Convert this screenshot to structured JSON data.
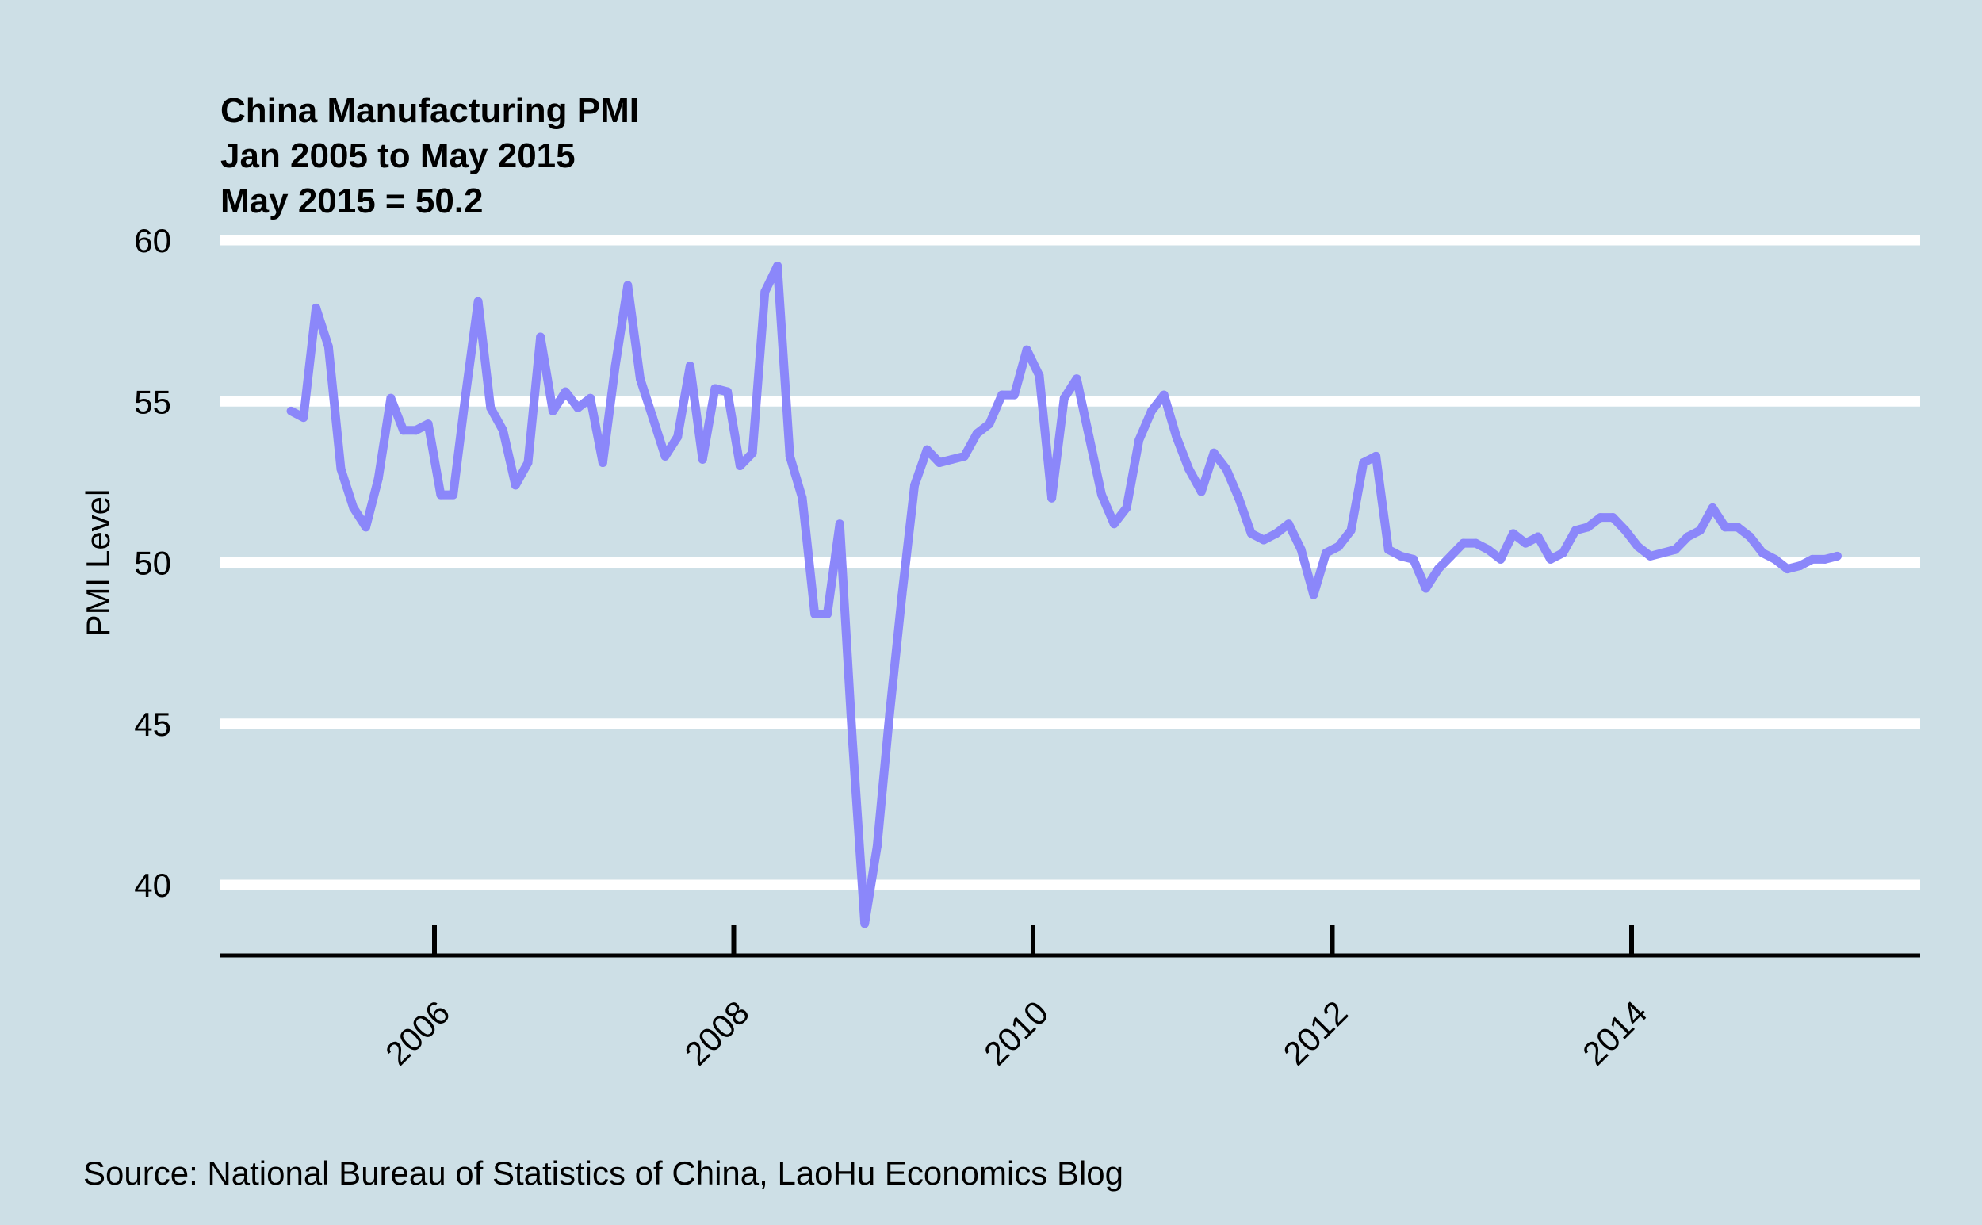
{
  "chart_data": {
    "type": "line",
    "title_lines": [
      "China Manufacturing PMI",
      "Jan 2005 to May 2015",
      "May 2015 = 50.2"
    ],
    "ylabel": "PMI Level",
    "xlabel": "",
    "ylim": [
      38,
      60
    ],
    "yticks": [
      40,
      45,
      50,
      55,
      60
    ],
    "xlim": [
      2004.8,
      2016.0
    ],
    "xticks": [
      2006,
      2008,
      2010,
      2012,
      2014
    ],
    "xtick_labels": [
      "2006",
      "2008",
      "2010",
      "2012",
      "2014"
    ],
    "grid": "horizontal",
    "line_color": "#8b87fa",
    "background_color": "#cddfe6",
    "series": [
      {
        "x": [
          "2005-01",
          "2005-02",
          "2005-03",
          "2005-04",
          "2005-05",
          "2005-06",
          "2005-07",
          "2005-08",
          "2005-09",
          "2005-10",
          "2005-11",
          "2005-12",
          "2006-01",
          "2006-02",
          "2006-03",
          "2006-04",
          "2006-05",
          "2006-06",
          "2006-07",
          "2006-08",
          "2006-09",
          "2006-10",
          "2006-11",
          "2006-12",
          "2007-01",
          "2007-02",
          "2007-03",
          "2007-04",
          "2007-05",
          "2007-06",
          "2007-07",
          "2007-08",
          "2007-09",
          "2007-10",
          "2007-11",
          "2007-12",
          "2008-01",
          "2008-02",
          "2008-03",
          "2008-04",
          "2008-05",
          "2008-06",
          "2008-07",
          "2008-08",
          "2008-09",
          "2008-10",
          "2008-11",
          "2008-12",
          "2009-01",
          "2009-02",
          "2009-03",
          "2009-04",
          "2009-05",
          "2009-06",
          "2009-07",
          "2009-08",
          "2009-09",
          "2009-10",
          "2009-11",
          "2009-12",
          "2010-01",
          "2010-02",
          "2010-03",
          "2010-04",
          "2010-05",
          "2010-06",
          "2010-07",
          "2010-08",
          "2010-09",
          "2010-10",
          "2010-11",
          "2010-12",
          "2011-01",
          "2011-02",
          "2011-03",
          "2011-04",
          "2011-05",
          "2011-06",
          "2011-07",
          "2011-08",
          "2011-09",
          "2011-10",
          "2011-11",
          "2011-12",
          "2012-01",
          "2012-02",
          "2012-03",
          "2012-04",
          "2012-05",
          "2012-06",
          "2012-07",
          "2012-08",
          "2012-09",
          "2012-10",
          "2012-11",
          "2012-12",
          "2013-01",
          "2013-02",
          "2013-03",
          "2013-04",
          "2013-05",
          "2013-06",
          "2013-07",
          "2013-08",
          "2013-09",
          "2013-10",
          "2013-11",
          "2013-12",
          "2014-01",
          "2014-02",
          "2014-03",
          "2014-04",
          "2014-05",
          "2014-06",
          "2014-07",
          "2014-08",
          "2014-09",
          "2014-10",
          "2014-11",
          "2014-12",
          "2015-01",
          "2015-02",
          "2015-03",
          "2015-04",
          "2015-05"
        ],
        "values": [
          54.7,
          54.5,
          57.9,
          56.7,
          52.9,
          51.7,
          51.1,
          52.6,
          55.1,
          54.1,
          54.1,
          54.3,
          52.1,
          52.1,
          55.2,
          58.1,
          54.8,
          54.1,
          52.4,
          53.1,
          57.0,
          54.7,
          55.3,
          54.8,
          55.1,
          53.1,
          56.1,
          58.6,
          55.7,
          54.5,
          53.3,
          53.9,
          56.1,
          53.2,
          55.4,
          55.3,
          53.0,
          53.4,
          58.4,
          59.2,
          53.3,
          52.0,
          48.4,
          48.4,
          51.2,
          44.6,
          38.8,
          41.2,
          45.3,
          49.0,
          52.4,
          53.5,
          53.1,
          53.2,
          53.3,
          54.0,
          54.3,
          55.2,
          55.2,
          56.6,
          55.8,
          52.0,
          55.1,
          55.7,
          53.9,
          52.1,
          51.2,
          51.7,
          53.8,
          54.7,
          55.2,
          53.9,
          52.9,
          52.2,
          53.4,
          52.9,
          52.0,
          50.9,
          50.7,
          50.9,
          51.2,
          50.4,
          49.0,
          50.3,
          50.5,
          51.0,
          53.1,
          53.3,
          50.4,
          50.2,
          50.1,
          49.2,
          49.8,
          50.2,
          50.6,
          50.6,
          50.4,
          50.1,
          50.9,
          50.6,
          50.8,
          50.1,
          50.3,
          51.0,
          51.1,
          51.4,
          51.4,
          51.0,
          50.5,
          50.2,
          50.3,
          50.4,
          50.8,
          51.0,
          51.7,
          51.1,
          51.1,
          50.8,
          50.3,
          50.1,
          49.8,
          49.9,
          50.1,
          50.1,
          50.2
        ]
      }
    ],
    "source": "Source: National Bureau of Statistics of China, LaoHu Economics Blog"
  }
}
